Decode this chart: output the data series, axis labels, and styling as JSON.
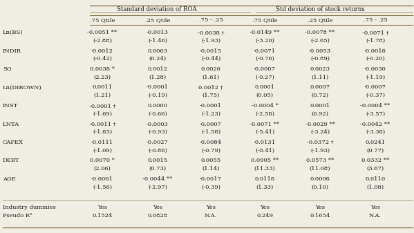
{
  "col_group1": "Standard deviation of ROA",
  "col_group2": "Std deviation of stock returns",
  "subheaders": [
    ".75 Qtile",
    ".25 Qtile",
    ".75 - .25",
    ".75 Qtile",
    ".25 Qtile",
    ".75 - .25"
  ],
  "row_labels": [
    "Ln(BS)",
    "INDIR",
    "SO",
    "Ln(DIROWN)",
    "INST",
    "LNTA",
    "CAPEX",
    "DEBT",
    "AGE"
  ],
  "data": [
    [
      "-0.0051 **",
      "-0.0013",
      "-0.0038 †",
      "-0.0149 **",
      "-0.0078 **",
      "-0.0071 †"
    ],
    [
      "(-2.88)",
      "(-1.46)",
      "(-1.93)",
      "(-3.20)",
      "(-2.65)",
      "(-1.78)"
    ],
    [
      "-0.0012",
      "0.0003",
      "-0.0015",
      "-0.0071",
      "-0.0053",
      "-0.0018"
    ],
    [
      "(-0.42)",
      "(0.24)",
      "(-0.44)",
      "(-0.76)",
      "(-0.89)",
      "(-0.20)"
    ],
    [
      "0.0038 *",
      "0.0012",
      "0.0026",
      "-0.0007",
      "0.0023",
      "-0.0030"
    ],
    [
      "(2.23)",
      "(1.28)",
      "(1.61)",
      "(-0.27)",
      "(1.11)",
      "(-1.19)"
    ],
    [
      "0.0011",
      "-0.0001",
      "0.0012 †",
      "0.0001",
      "0.0007",
      "-0.0007"
    ],
    [
      "(1.21)",
      "(-0.19)",
      "(1.75)",
      "(0.05)",
      "(0.72)",
      "(-0.37)"
    ],
    [
      "-0.0001 †",
      "0.0000",
      "-0.0001",
      "-0.0004 *",
      "0.0001",
      "-0.0004 **"
    ],
    [
      "(-1.69)",
      "(-0.66)",
      "(-1.23)",
      "(-2.58)",
      "(0.92)",
      "(-3.57)"
    ],
    [
      "-0.0011 †",
      "-0.0003",
      "-0.0007",
      "-0.0071 **",
      "-0.0029 **",
      "-0.0042 **"
    ],
    [
      "(-1.85)",
      "(-0.93)",
      "(-1.58)",
      "(-5.41)",
      "(-3.24)",
      "(-3.38)"
    ],
    [
      "-0.0111",
      "-0.0027",
      "-0.0084",
      "-0.0131",
      "-0.0372 †",
      "0.0241"
    ],
    [
      "(-1.09)",
      "(-0.86)",
      "(-0.79)",
      "(-0.41)",
      "(-1.93)",
      "(0.77)"
    ],
    [
      "0.0070 *",
      "0.0015",
      "0.0055",
      "0.0905 **",
      "0.0573 **",
      "0.0332 **"
    ],
    [
      "(2.06)",
      "(0.73)",
      "(1.14)",
      "(11.33)",
      "(11.08)",
      "(3.67)"
    ],
    [
      "-0.0061",
      "-0.0044 **",
      "-0.0017",
      "0.0118",
      "0.0008",
      "0.0110"
    ],
    [
      "(-1.56)",
      "(-2.97)",
      "(-0.39)",
      "(1.33)",
      "(0.10)",
      "(1.08)"
    ]
  ],
  "footer_labels": [
    "Industry dummies",
    "Pseudo R²"
  ],
  "footer_data": [
    [
      "Yes",
      "Yes",
      "Yes",
      "Yes",
      "Yes",
      "Yes"
    ],
    [
      "0.1524",
      "0.0828",
      "N.A.",
      "0.249",
      "0.1654",
      "N.A."
    ]
  ],
  "bg_color": "#f0ede4",
  "text_color": "#1a1a1a",
  "line_color": "#8a7a50"
}
